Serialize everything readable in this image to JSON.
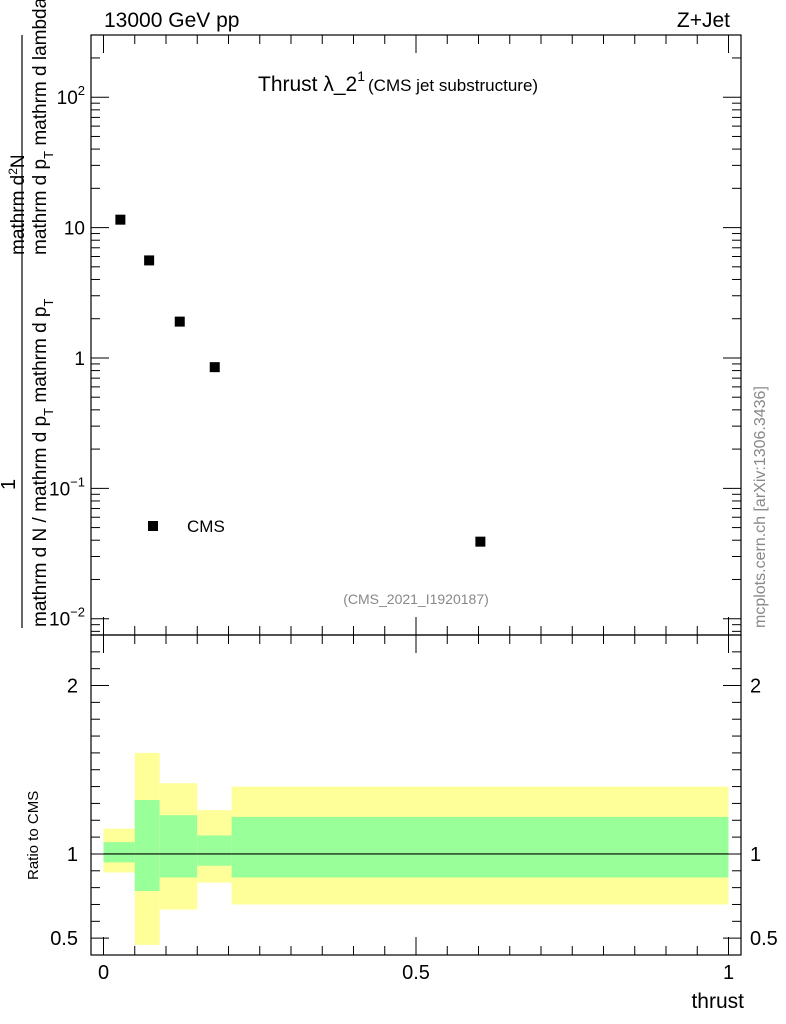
{
  "header": {
    "left": "13000 GeV pp",
    "right": "Z+Jet"
  },
  "chart_data": [
    {
      "type": "scatter",
      "panel": "main",
      "title": {
        "main": "Thrust λ_2",
        "superscript": "1",
        "suffix": "(CMS jet substructure)"
      },
      "ylabel": {
        "numerator": "mathrm d²N",
        "numerator_line1": "mathrm d",
        "numerator_sup": "2",
        "numerator_line1b": "N",
        "numerator_line2": "mathrm d p",
        "numerator_line2_sub": "T",
        "numerator_line2b": " mathrm d lambda",
        "one": "1",
        "denominator": "mathrm d N / mathrm d p",
        "denominator_sub": "T",
        "denominator_b": " mathrm d p",
        "denominator_sub2": "T",
        "denominator_c": ""
      },
      "yscale": "log",
      "ylim": [
        0.0075,
        300
      ],
      "xlim": [
        -0.02,
        1.02
      ],
      "ytick_labels": [
        {
          "value": 0.01,
          "base": "10",
          "exp": "−2"
        },
        {
          "value": 0.1,
          "base": "10",
          "exp": "−1"
        },
        {
          "value": 1,
          "label": "1"
        },
        {
          "value": 10,
          "label": "10"
        },
        {
          "value": 100,
          "base": "10",
          "exp": "2"
        }
      ],
      "series": [
        {
          "name": "CMS",
          "marker": "square",
          "color": "#000000",
          "points": [
            {
              "x": 0.027,
              "y": 11.5
            },
            {
              "x": 0.073,
              "y": 5.6
            },
            {
              "x": 0.122,
              "y": 1.9
            },
            {
              "x": 0.178,
              "y": 0.85
            },
            {
              "x": 0.603,
              "y": 0.039
            }
          ]
        }
      ],
      "legend": {
        "label": "CMS",
        "placement": "lower-left"
      },
      "watermark": "(CMS_2021_I1920187)",
      "side_label": "mcplots.cern.ch [arXiv:1306.3436]"
    },
    {
      "type": "band",
      "panel": "ratio",
      "ylabel": "Ratio to CMS",
      "xlabel": "thrust",
      "ylim": [
        0.4,
        2.3
      ],
      "xlim": [
        -0.02,
        1.02
      ],
      "ytick_labels": [
        "0.5",
        "1",
        "2"
      ],
      "xtick_labels": [
        "0",
        "0.5",
        "1"
      ],
      "reference_line": 1,
      "bins": [
        {
          "x0": 0.0,
          "x1": 0.05,
          "inner": [
            0.95,
            1.07
          ],
          "outer": [
            0.89,
            1.15
          ]
        },
        {
          "x0": 0.05,
          "x1": 0.09,
          "inner": [
            0.78,
            1.32
          ],
          "outer": [
            0.46,
            1.6
          ]
        },
        {
          "x0": 0.09,
          "x1": 0.15,
          "inner": [
            0.86,
            1.23
          ],
          "outer": [
            0.67,
            1.42
          ]
        },
        {
          "x0": 0.15,
          "x1": 0.205,
          "inner": [
            0.93,
            1.11
          ],
          "outer": [
            0.83,
            1.26
          ]
        },
        {
          "x0": 0.205,
          "x1": 1.0,
          "inner": [
            0.86,
            1.22
          ],
          "outer": [
            0.7,
            1.4
          ]
        }
      ],
      "colors": {
        "inner": "#99ff99",
        "outer": "#ffff99",
        "line": "#000000"
      }
    }
  ]
}
